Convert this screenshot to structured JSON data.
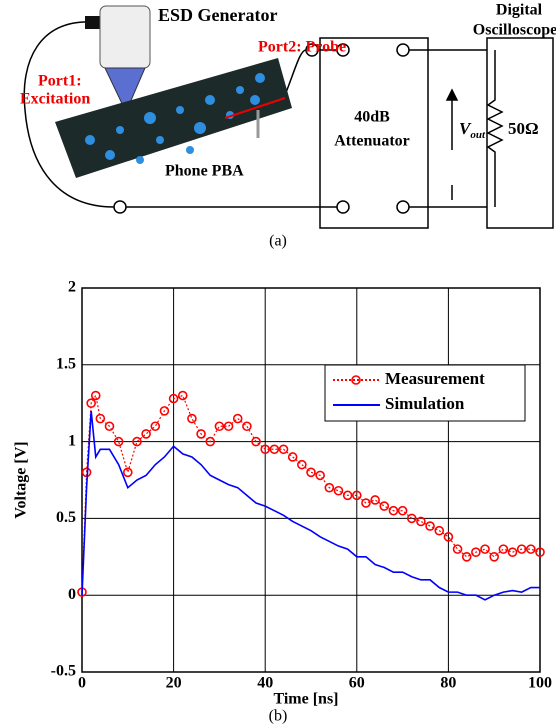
{
  "diagram": {
    "esd_generator": "ESD Generator",
    "port1": "Port1:",
    "excitation": "Excitation",
    "port2": "Port2: Probe",
    "phone": "Phone PBA",
    "attenuator_gain": "40dB",
    "attenuator": "Attenuator",
    "oscilloscope_line1": "Digital",
    "oscilloscope_line2": "Oscilloscope",
    "vout": {
      "symbol": "V",
      "subscript": "out"
    },
    "load": "50Ω",
    "caption": "(a)"
  },
  "chart_data": {
    "type": "line",
    "caption": "(b)",
    "x_label": "Time [ns]",
    "y_label": "Voltage [V]",
    "xlim": [
      0,
      100
    ],
    "xticks": [
      0,
      20,
      40,
      60,
      80,
      100
    ],
    "ylim": [
      -0.5,
      2
    ],
    "yticks": [
      -0.5,
      0,
      0.5,
      1,
      1.5,
      2
    ],
    "grid": true,
    "legend": "upper right",
    "x": [
      0,
      1,
      2,
      3,
      4,
      6,
      8,
      10,
      12,
      14,
      16,
      18,
      20,
      22,
      24,
      26,
      28,
      30,
      32,
      34,
      36,
      38,
      40,
      42,
      44,
      46,
      48,
      50,
      52,
      54,
      56,
      58,
      60,
      62,
      64,
      66,
      68,
      70,
      72,
      74,
      76,
      78,
      80,
      82,
      84,
      86,
      88,
      90,
      92,
      94,
      96,
      98,
      100
    ],
    "series": [
      {
        "name": "Measurement",
        "color": "#ff0000",
        "marker": "circle",
        "values": [
          0.02,
          0.8,
          1.25,
          1.3,
          1.15,
          1.1,
          1.0,
          0.8,
          1.0,
          1.05,
          1.1,
          1.2,
          1.28,
          1.3,
          1.15,
          1.05,
          1.0,
          1.1,
          1.1,
          1.15,
          1.1,
          1.0,
          0.95,
          0.95,
          0.95,
          0.9,
          0.85,
          0.8,
          0.78,
          0.7,
          0.68,
          0.65,
          0.65,
          0.6,
          0.62,
          0.58,
          0.55,
          0.55,
          0.5,
          0.48,
          0.45,
          0.42,
          0.38,
          0.3,
          0.25,
          0.28,
          0.3,
          0.25,
          0.3,
          0.28,
          0.3,
          0.3,
          0.28
        ]
      },
      {
        "name": "Simulation",
        "color": "#0000ff",
        "values": [
          0,
          0.7,
          1.2,
          0.9,
          0.95,
          0.95,
          0.85,
          0.7,
          0.75,
          0.78,
          0.85,
          0.9,
          0.97,
          0.92,
          0.9,
          0.85,
          0.78,
          0.75,
          0.72,
          0.7,
          0.65,
          0.6,
          0.58,
          0.55,
          0.52,
          0.48,
          0.45,
          0.42,
          0.38,
          0.35,
          0.32,
          0.3,
          0.25,
          0.25,
          0.2,
          0.18,
          0.15,
          0.15,
          0.12,
          0.1,
          0.1,
          0.05,
          0.02,
          0.02,
          0,
          0,
          -0.03,
          0,
          0.02,
          0.03,
          0.02,
          0.05,
          0.05
        ]
      }
    ]
  }
}
